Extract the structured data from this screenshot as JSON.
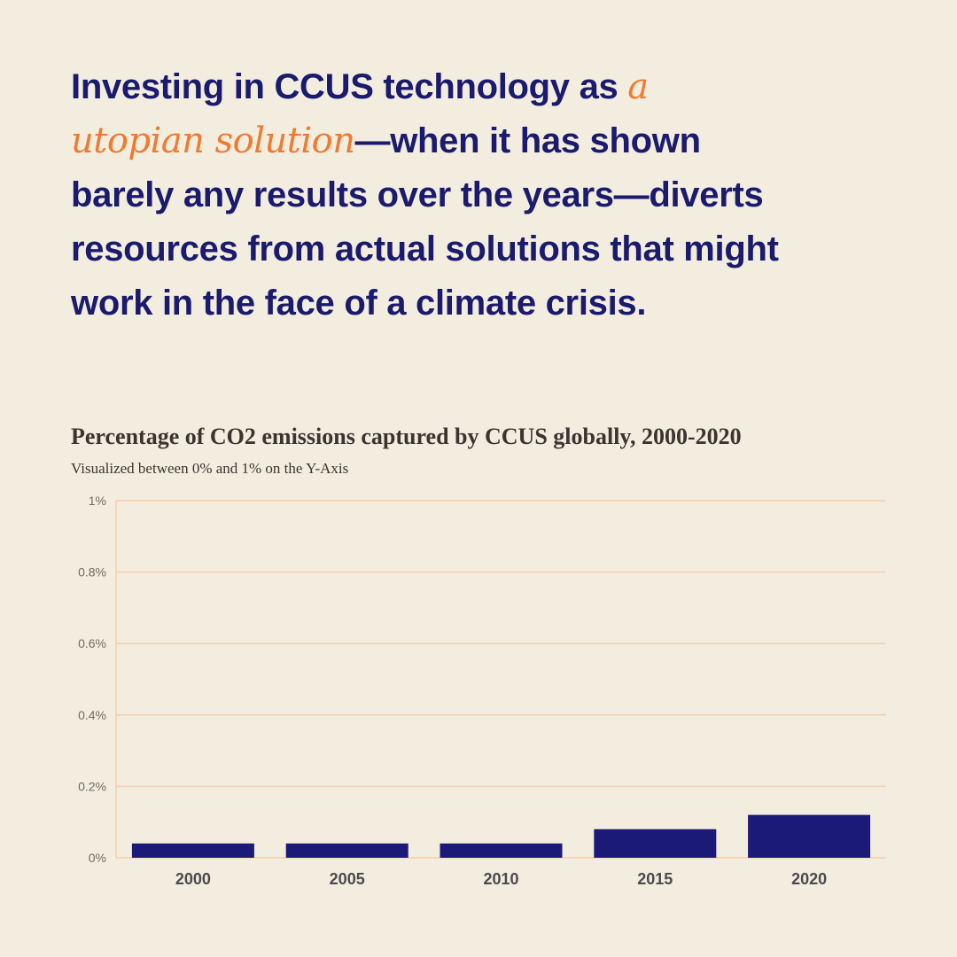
{
  "headline": {
    "part1": "Investing in CCUS technology as ",
    "accent": "a utopian solution",
    "part2": "—when it has shown barely any results over the years—diverts resources from actual solutions that might work in the face of a climate crisis."
  },
  "colors": {
    "background": "#f3ede0",
    "headline": "#1a1a6e",
    "accent": "#f07a2e",
    "bar": "#1c1a78",
    "gridline": "#f6cfae"
  },
  "chart_data": {
    "type": "bar",
    "title": "Percentage of CO2 emissions captured by CCUS globally, 2000-2020",
    "subtitle": "Visualized between 0% and 1% on the Y-Axis",
    "categories": [
      "2000",
      "2005",
      "2010",
      "2015",
      "2020"
    ],
    "values": [
      0.04,
      0.04,
      0.04,
      0.08,
      0.12
    ],
    "ylim": [
      0,
      1
    ],
    "yticks": [
      0,
      0.2,
      0.4,
      0.6,
      0.8,
      1
    ],
    "ytick_labels": [
      "0%",
      "0.2%",
      "0.4%",
      "0.6%",
      "0.8%",
      "1%"
    ],
    "unit": "%",
    "grid": true
  }
}
